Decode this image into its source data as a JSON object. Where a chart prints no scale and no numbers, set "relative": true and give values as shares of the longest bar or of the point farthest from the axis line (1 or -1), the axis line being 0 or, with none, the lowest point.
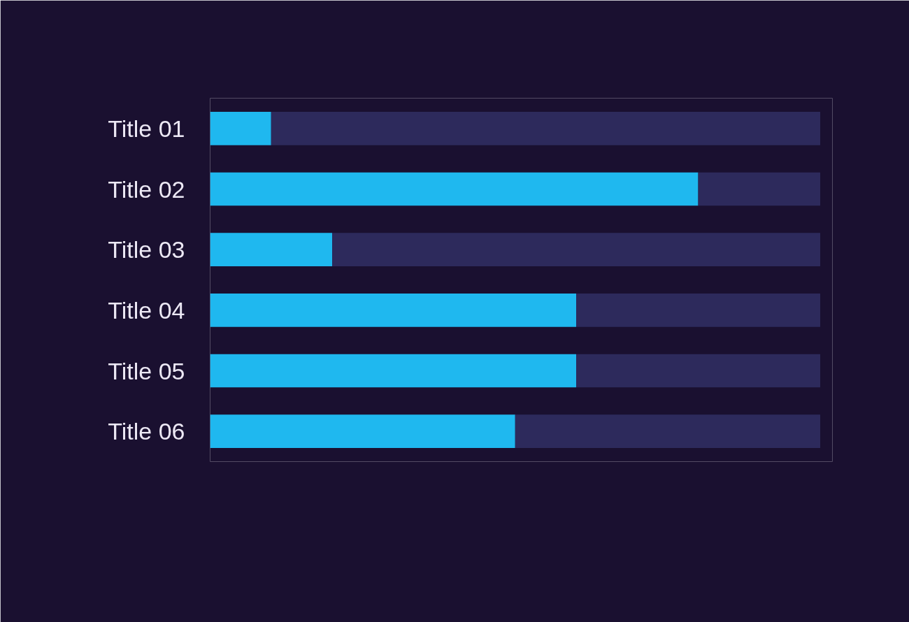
{
  "chart_data": {
    "type": "bar",
    "orientation": "horizontal",
    "stacked": true,
    "relative": true,
    "categories": [
      "Title 01",
      "Title 02",
      "Title 03",
      "Title 04",
      "Title 05",
      "Title 06"
    ],
    "series": [
      {
        "color": "#1fb8ef",
        "values": [
          0.1,
          0.8,
          0.2,
          0.6,
          0.6,
          0.5
        ]
      },
      {
        "color": "#2d2a5c",
        "values": [
          0.9,
          0.2,
          0.8,
          0.4,
          0.4,
          0.5
        ]
      }
    ],
    "grid": false
  }
}
